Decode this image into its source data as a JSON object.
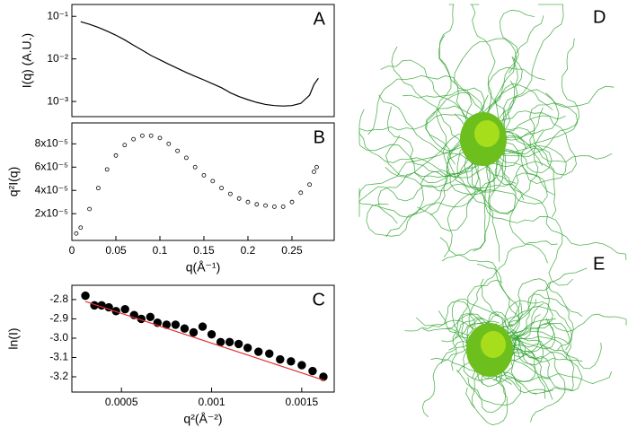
{
  "chart_data": [
    {
      "type": "line",
      "annotation": "A",
      "y_label": "I(q) (A.U.)",
      "log_y": true,
      "xlim": [
        0,
        0.298
      ],
      "ylim": [
        0.00044,
        0.19
      ],
      "yticks": [
        {
          "value": 0.1,
          "label": "10⁻¹"
        },
        {
          "value": 0.01,
          "label": "10⁻²"
        },
        {
          "value": 0.001,
          "label": "10⁻³"
        }
      ],
      "x": [
        0.01,
        0.02,
        0.03,
        0.04,
        0.05,
        0.06,
        0.07,
        0.08,
        0.09,
        0.1,
        0.11,
        0.12,
        0.13,
        0.14,
        0.15,
        0.16,
        0.17,
        0.18,
        0.19,
        0.2,
        0.21,
        0.22,
        0.23,
        0.24,
        0.25,
        0.26,
        0.27,
        0.275,
        0.28
      ],
      "series": [
        {
          "color": "#000000",
          "values": [
            0.075,
            0.065,
            0.055,
            0.045,
            0.036,
            0.028,
            0.021,
            0.016,
            0.012,
            0.0095,
            0.0075,
            0.006,
            0.0048,
            0.0039,
            0.0032,
            0.0026,
            0.0021,
            0.0016,
            0.0013,
            0.0011,
            0.00095,
            0.00085,
            0.0008,
            0.00078,
            0.0008,
            0.0009,
            0.0014,
            0.0025,
            0.0035
          ]
        }
      ]
    },
    {
      "type": "scatter",
      "annotation": "B",
      "x_label": "q(Å⁻¹)",
      "y_label": "q²I(q)",
      "marker_fill": false,
      "xlim": [
        0,
        0.298
      ],
      "ylim": [
        -3e-06,
        9.8e-05
      ],
      "xticks": [
        0,
        0.05,
        0.1,
        0.15,
        0.2,
        0.25
      ],
      "yticks": [
        {
          "value": 2e-05,
          "label": "2x10⁻⁵"
        },
        {
          "value": 4e-05,
          "label": "4x10⁻⁵"
        },
        {
          "value": 6e-05,
          "label": "6x10⁻⁵"
        },
        {
          "value": 8e-05,
          "label": "8x10⁻⁵"
        }
      ],
      "x": [
        0.005,
        0.01,
        0.02,
        0.03,
        0.04,
        0.05,
        0.06,
        0.07,
        0.08,
        0.09,
        0.1,
        0.11,
        0.12,
        0.13,
        0.14,
        0.15,
        0.16,
        0.17,
        0.18,
        0.19,
        0.2,
        0.21,
        0.22,
        0.23,
        0.24,
        0.25,
        0.26,
        0.27,
        0.275,
        0.278
      ],
      "series": [
        {
          "color": "#000000",
          "values": [
            3e-06,
            8e-06,
            2.4e-05,
            4.2e-05,
            5.8e-05,
            7e-05,
            7.9e-05,
            8.4e-05,
            8.7e-05,
            8.7e-05,
            8.5e-05,
            8e-05,
            7.4e-05,
            6.8e-05,
            6e-05,
            5.3e-05,
            4.8e-05,
            4.2e-05,
            3.7e-05,
            3.3e-05,
            3e-05,
            2.8e-05,
            2.7e-05,
            2.6e-05,
            2.6e-05,
            3e-05,
            3.8e-05,
            4.5e-05,
            5.6e-05,
            6e-05
          ]
        }
      ]
    },
    {
      "type": "scatter",
      "annotation": "C",
      "x_label": "q²(Å⁻²)",
      "y_label": "ln(I)",
      "marker_fill": true,
      "xlim": [
        0.000225,
        0.00168
      ],
      "ylim": [
        -3.279,
        -2.726
      ],
      "xticks": [
        0.0005,
        0.001,
        0.0015
      ],
      "yticks": [
        -2.8,
        -2.9,
        {
          "value": -3,
          "label": "-3.0"
        },
        -3.1,
        -3.2
      ],
      "x": [
        0.0003,
        0.00035,
        0.00039,
        0.00043,
        0.00047,
        0.00052,
        0.00057,
        0.00061,
        0.00066,
        0.0007,
        0.00075,
        0.0008,
        0.00085,
        0.0009,
        0.00095,
        0.001,
        0.00105,
        0.0011,
        0.00115,
        0.0012,
        0.00126,
        0.00132,
        0.00138,
        0.00144,
        0.0015,
        0.00156,
        0.00162
      ],
      "series": [
        {
          "color": "#000000",
          "values": [
            -2.78,
            -2.83,
            -2.83,
            -2.84,
            -2.86,
            -2.85,
            -2.88,
            -2.9,
            -2.89,
            -2.92,
            -2.93,
            -2.93,
            -2.95,
            -2.97,
            -2.94,
            -2.98,
            -3.02,
            -3.02,
            -3.03,
            -3.05,
            -3.07,
            -3.08,
            -3.11,
            -3.12,
            -3.14,
            -3.17,
            -3.2
          ]
        },
        {
          "color": "#e03030",
          "style": "line",
          "x": [
            0.0003,
            0.00163
          ],
          "values": [
            -2.81,
            -3.22
          ]
        }
      ]
    }
  ],
  "images": [
    {
      "label": "D"
    },
    {
      "label": "E"
    }
  ]
}
